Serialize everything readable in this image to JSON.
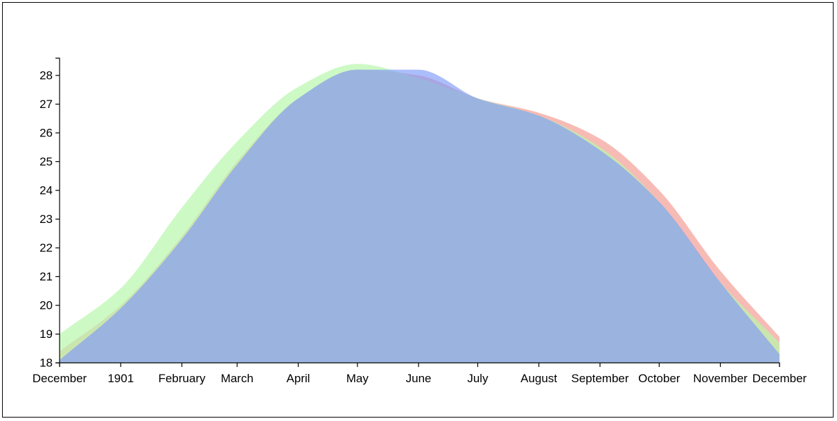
{
  "chart_data": {
    "type": "area",
    "x_ticks": [
      "December",
      "1901",
      "February",
      "March",
      "April",
      "May",
      "June",
      "July",
      "August",
      "September",
      "October",
      "November",
      "December"
    ],
    "x_dates": [
      "1900-12-01",
      "1901-01-01",
      "1901-02-01",
      "1901-03-01",
      "1901-04-01",
      "1901-05-01",
      "1901-06-01",
      "1901-07-01",
      "1901-08-01",
      "1901-09-01",
      "1901-10-01",
      "1901-11-01",
      "1901-12-01"
    ],
    "ylim": [
      18,
      28.6
    ],
    "y_ticks": [
      18,
      19,
      20,
      21,
      22,
      23,
      24,
      25,
      26,
      27,
      28
    ],
    "grid": false,
    "series": [
      {
        "color": "#f4a49c",
        "opacity": 0.75,
        "x": [
          "1900-12-01",
          "1901-01-01",
          "1901-02-01",
          "1901-03-01",
          "1901-04-01",
          "1901-05-01",
          "1901-06-01",
          "1901-07-01",
          "1901-08-01",
          "1901-09-01",
          "1901-10-01",
          "1901-11-01",
          "1901-12-01"
        ],
        "values": [
          18.4,
          20.0,
          22.4,
          25.0,
          27.2,
          28.2,
          28.0,
          27.2,
          26.7,
          25.8,
          24.0,
          21.2,
          18.9
        ]
      },
      {
        "color": "#b8f7ac",
        "opacity": 0.7,
        "x": [
          "1900-12-01",
          "1901-01-01",
          "1901-02-01",
          "1901-03-01",
          "1901-04-01",
          "1901-05-01",
          "1901-06-01",
          "1901-07-01",
          "1901-08-01",
          "1901-09-01",
          "1901-10-01",
          "1901-11-01",
          "1901-12-01"
        ],
        "values": [
          19.0,
          20.6,
          23.4,
          25.7,
          27.6,
          28.4,
          27.9,
          27.2,
          26.6,
          25.5,
          23.6,
          20.8,
          18.7
        ]
      },
      {
        "color": "#8099f9",
        "opacity": 0.65,
        "x": [
          "1900-12-01",
          "1901-01-01",
          "1901-02-01",
          "1901-03-01",
          "1901-04-01",
          "1901-05-01",
          "1901-06-01",
          "1901-07-01",
          "1901-08-01",
          "1901-09-01",
          "1901-10-01",
          "1901-11-01",
          "1901-12-01"
        ],
        "values": [
          18.1,
          19.9,
          22.3,
          24.9,
          27.2,
          28.2,
          28.2,
          27.2,
          26.6,
          25.4,
          23.6,
          20.8,
          18.3
        ]
      }
    ]
  }
}
